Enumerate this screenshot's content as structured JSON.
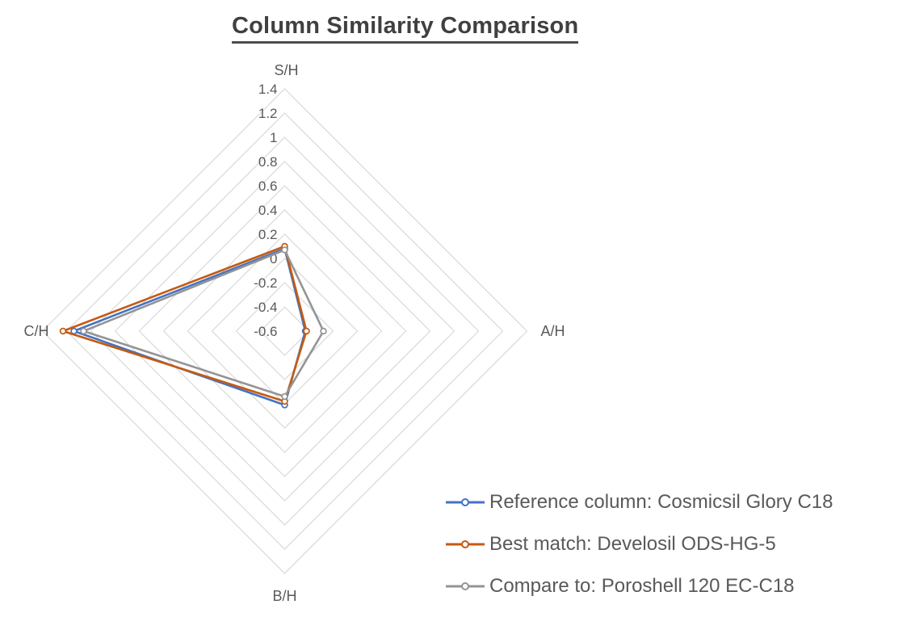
{
  "chart_data": {
    "type": "radar",
    "title": "Column Similarity Comparison",
    "categories": [
      "S/H",
      "A/H",
      "B/H",
      "C/H"
    ],
    "axis": {
      "min": -0.6,
      "max": 1.4,
      "step": 0.2,
      "tick_labels": [
        "1.4",
        "1.2",
        "1",
        "0.8",
        "0.6",
        "0.4",
        "0.2",
        "0",
        "-0.2",
        "-0.4",
        "-0.6"
      ]
    },
    "grid": true,
    "legend_position": "bottom-right",
    "series": [
      {
        "name": "Reference column: Cosmicsil Glory C18",
        "color": "#4472C4",
        "values": [
          0.08,
          -0.43,
          0.01,
          1.14
        ]
      },
      {
        "name": "Best match: Develosil ODS-HG-5",
        "color": "#C55A11",
        "values": [
          0.1,
          -0.42,
          -0.02,
          1.23
        ]
      },
      {
        "name": "Compare to: Poroshell 120 EC-C18",
        "color": "#949494",
        "values": [
          0.07,
          -0.28,
          -0.06,
          1.06
        ]
      }
    ],
    "colors": {
      "grid": "#D9D9D9",
      "tick_text": "#595959",
      "title_text": "#404040",
      "legend_text": "#595959"
    }
  }
}
